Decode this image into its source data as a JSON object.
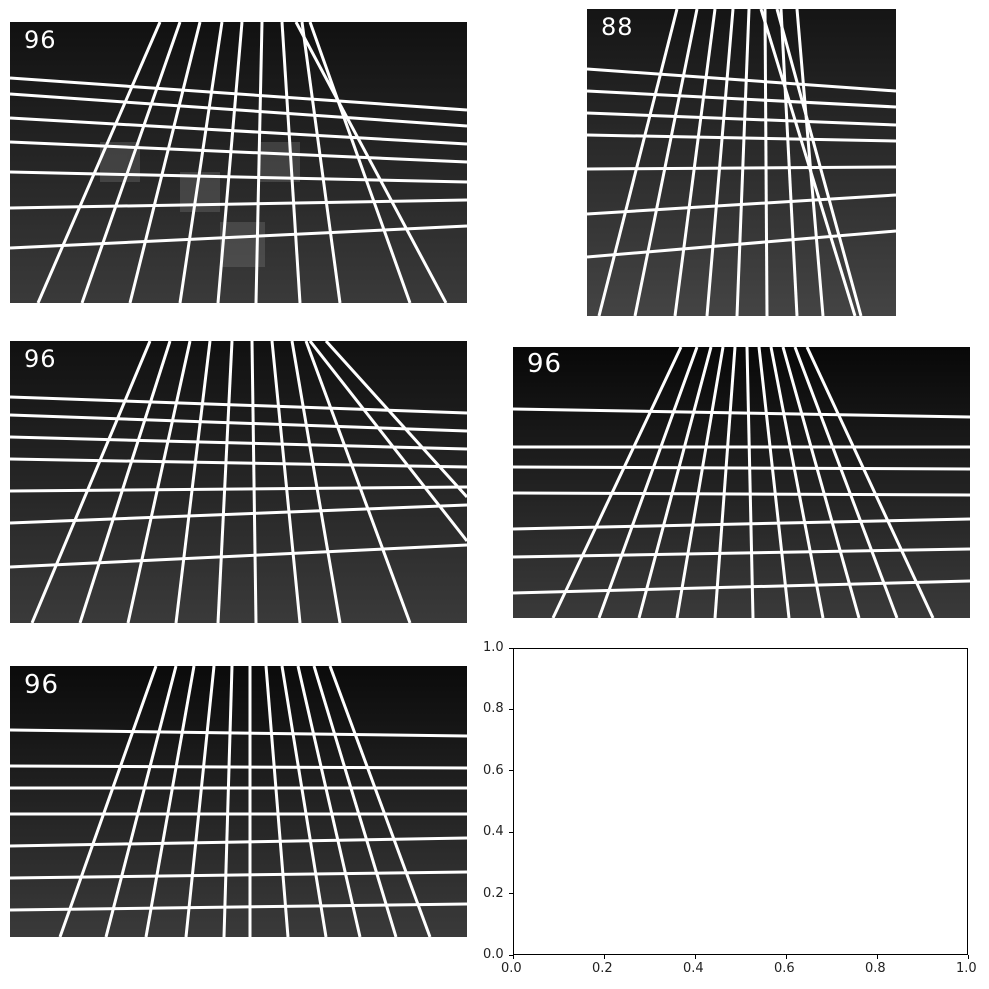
{
  "panels": [
    {
      "id": "p1",
      "count": "96",
      "lines": 9,
      "hlines": 8,
      "tilt": 0.15
    },
    {
      "id": "p2",
      "count": "88",
      "lines": 9,
      "hlines": 8,
      "tilt": 0.1
    },
    {
      "id": "p3",
      "count": "96",
      "lines": 9,
      "hlines": 9,
      "tilt": 0.18
    },
    {
      "id": "p4",
      "count": "96",
      "lines": 12,
      "hlines": 9,
      "tilt": 0.05
    },
    {
      "id": "p5",
      "count": "96",
      "lines": 12,
      "hlines": 8,
      "tilt": 0.02
    }
  ],
  "empty_axes": {
    "x_ticks": [
      "0.0",
      "0.2",
      "0.4",
      "0.6",
      "0.8",
      "1.0"
    ],
    "y_ticks": [
      "0.0",
      "0.2",
      "0.4",
      "0.6",
      "0.8",
      "1.0"
    ]
  }
}
